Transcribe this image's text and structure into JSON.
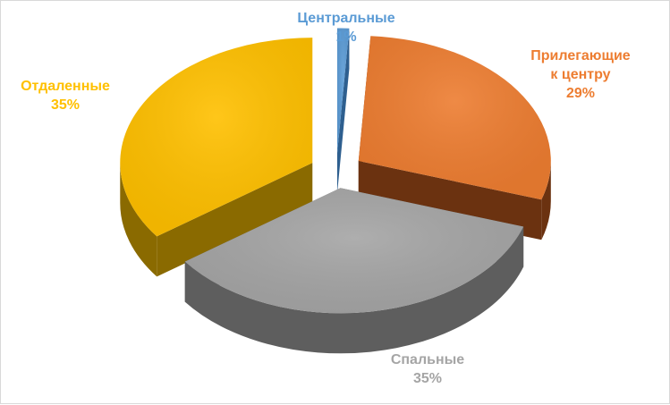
{
  "chart_data": {
    "type": "pie",
    "title": "",
    "legend": "none",
    "slices": [
      {
        "category": "Центральные",
        "value": 1,
        "label_lines": [
          "Центральные"
        ],
        "value_label": "1%",
        "color": "#5b9bd5",
        "side_color": "#2e5f8f",
        "label_color": "#5b9bd5"
      },
      {
        "category": "Прилегающие к центру",
        "value": 29,
        "label_lines": [
          "Прилегающие",
          "к центру"
        ],
        "value_label": "29%",
        "color": "#ed7d31",
        "side_color": "#6b3210",
        "label_color": "#ed7d31"
      },
      {
        "category": "Спальные",
        "value": 35,
        "label_lines": [
          "Спальные"
        ],
        "value_label": "35%",
        "color": "#a5a5a5",
        "side_color": "#5e5e5e",
        "label_color": "#a5a5a5"
      },
      {
        "category": "Отдаленные",
        "value": 35,
        "label_lines": [
          "Отдаленные"
        ],
        "value_label": "35%",
        "color": "#ffc000",
        "side_color": "#8a6a00",
        "label_color": "#ffc000"
      }
    ]
  }
}
